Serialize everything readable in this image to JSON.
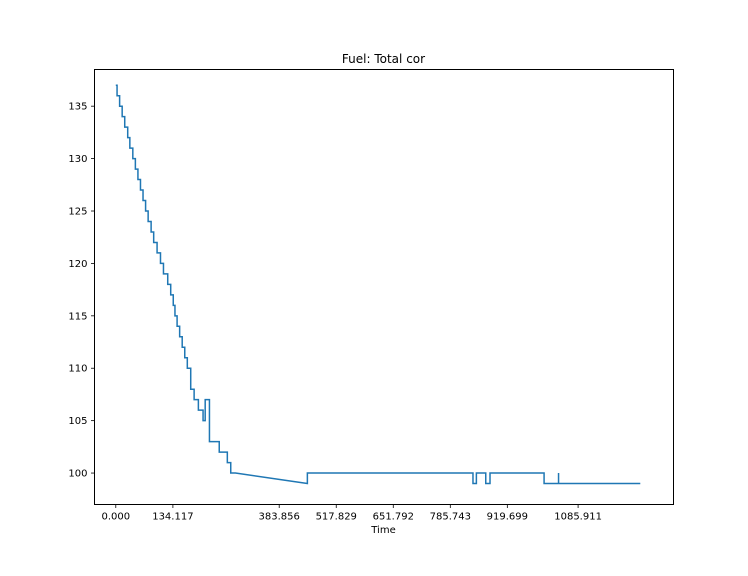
{
  "chart_data": {
    "type": "line",
    "title": "Fuel: Total cor",
    "xlabel": "Time",
    "ylabel": "",
    "xlim": [
      -50,
      1310
    ],
    "ylim": [
      97,
      138.5
    ],
    "xticks": [
      0.0,
      134.117,
      383.856,
      517.829,
      651.792,
      785.743,
      919.699,
      1085.911
    ],
    "xtick_labels": [
      "0.000",
      "134.117",
      "383.856",
      "517.829",
      "651.792",
      "785.743",
      "919.699",
      "1085.911"
    ],
    "yticks": [
      100,
      105,
      110,
      115,
      120,
      125,
      130,
      135
    ],
    "ytick_labels": [
      "100",
      "105",
      "110",
      "115",
      "120",
      "125",
      "130",
      "135"
    ],
    "grid": false,
    "line_color": "#1f77b4",
    "series": [
      {
        "name": "",
        "x": [
          0,
          3,
          3,
          9,
          9,
          15,
          15,
          21,
          21,
          28,
          28,
          33,
          33,
          40,
          40,
          46,
          46,
          52,
          52,
          58,
          58,
          64,
          64,
          70,
          70,
          76,
          76,
          83,
          83,
          89,
          89,
          97,
          97,
          105,
          105,
          112,
          112,
          122,
          122,
          129,
          129,
          135,
          135,
          139,
          139,
          144,
          144,
          150,
          150,
          156,
          156,
          162,
          162,
          168,
          168,
          176,
          176,
          184,
          184,
          194,
          194,
          205,
          205,
          210,
          210,
          220,
          220,
          225,
          225,
          228,
          228,
          229,
          229,
          231,
          231,
          232,
          232,
          233,
          233,
          243,
          243,
          262,
          262,
          270,
          270,
          281,
          281,
          450,
          450,
          450,
          450,
          450,
          450,
          839,
          839,
          847,
          847,
          869,
          869,
          879,
          879,
          1006,
          1006,
          1040,
          1040,
          1040,
          1040,
          1040,
          1040,
          1232
        ],
        "y": [
          137,
          137,
          136,
          136,
          135,
          135,
          134,
          134,
          133,
          133,
          132,
          132,
          131,
          131,
          130,
          130,
          129,
          129,
          128,
          128,
          127,
          127,
          126,
          126,
          125,
          125,
          124,
          124,
          123,
          123,
          122,
          122,
          121,
          121,
          120,
          120,
          119,
          119,
          118,
          118,
          117,
          117,
          116,
          116,
          115,
          115,
          114,
          114,
          113,
          113,
          112,
          112,
          111,
          111,
          110,
          110,
          108,
          108,
          107,
          107,
          106,
          106,
          105,
          105,
          107,
          107,
          103,
          103,
          103,
          103,
          103,
          103,
          103,
          103,
          103,
          103,
          103,
          103,
          103,
          103,
          102,
          102,
          101,
          101,
          100,
          100,
          100,
          99,
          100,
          100,
          100,
          100,
          100,
          100,
          99,
          99,
          100,
          100,
          99,
          99,
          100,
          100,
          99,
          99,
          100,
          99,
          99,
          99,
          99,
          99
        ]
      }
    ]
  }
}
